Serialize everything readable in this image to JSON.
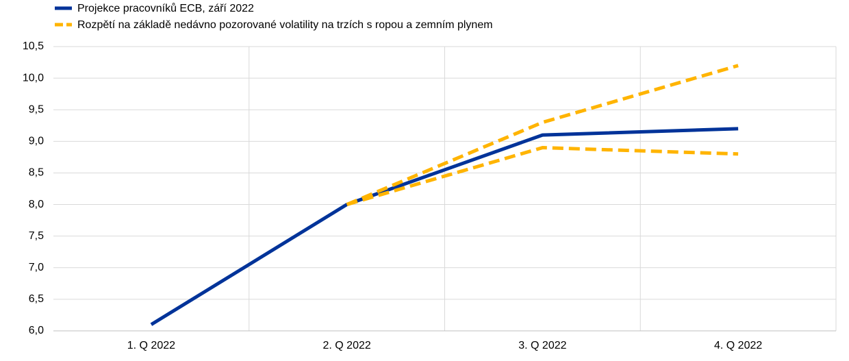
{
  "chart_data": {
    "type": "line",
    "categories": [
      "1. Q 2022",
      "2. Q 2022",
      "3. Q 2022",
      "4. Q 2022"
    ],
    "series": [
      {
        "name": "Projekce pracovníků ECB, září 2022",
        "color": "#003399",
        "dashed": false,
        "values": [
          6.1,
          8.0,
          9.1,
          9.2
        ]
      },
      {
        "name": "Rozpětí na základě nedávno pozorované volatility na trzích s ropou a zemním plynem",
        "color": "#ffb400",
        "dashed": true,
        "values": [
          null,
          8.0,
          9.3,
          10.2
        ]
      },
      {
        "color": "#ffb400",
        "dashed": true,
        "values": [
          null,
          8.0,
          8.9,
          8.8
        ]
      }
    ],
    "ylim": [
      6.0,
      10.5
    ],
    "yticks": [
      {
        "value": 6.0,
        "label": "6,0"
      },
      {
        "value": 6.5,
        "label": "6,5"
      },
      {
        "value": 7.0,
        "label": "7,0"
      },
      {
        "value": 7.5,
        "label": "7,5"
      },
      {
        "value": 8.0,
        "label": "8,0"
      },
      {
        "value": 8.5,
        "label": "8,5"
      },
      {
        "value": 9.0,
        "label": "9,0"
      },
      {
        "value": 9.5,
        "label": "9,5"
      },
      {
        "value": 10.0,
        "label": "10,0"
      },
      {
        "value": 10.5,
        "label": "10,5"
      }
    ],
    "grid": true,
    "legend": "top-left"
  }
}
